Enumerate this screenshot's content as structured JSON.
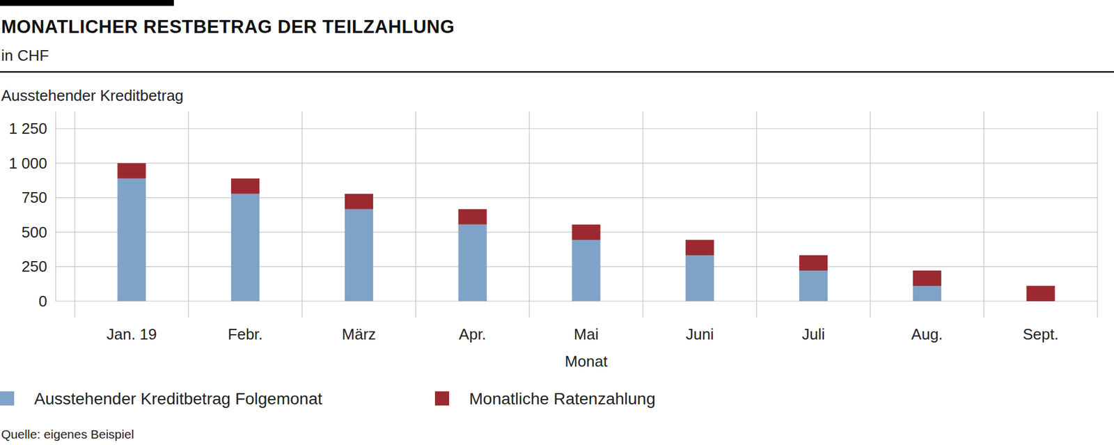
{
  "chart_data": {
    "type": "bar",
    "title": "MONATLICHER RESTBETRAG DER TEILZAHLUNG",
    "subtitle": "in CHF",
    "y_label": "Ausstehender Kreditbetrag",
    "x_label": "Monat",
    "source": "Quelle: eigenes Beispiel",
    "categories": [
      "Jan. 19",
      "Febr.",
      "März",
      "Apr.",
      "Mai",
      "Juni",
      "Juli",
      "Aug.",
      "Sept."
    ],
    "series": [
      {
        "name": "Ausstehender Kreditbetrag Folgemonat",
        "color": "#7fa3c6",
        "values": [
          889,
          778,
          667,
          556,
          444,
          333,
          222,
          111,
          0
        ]
      },
      {
        "name": "Monatliche Ratenzahlung",
        "color": "#9b2a30",
        "values": [
          111,
          111,
          111,
          111,
          111,
          111,
          111,
          111,
          111
        ]
      }
    ],
    "stacked": true,
    "ylim": [
      0,
      1375
    ],
    "yticks": [
      0,
      250,
      500,
      750,
      {
        "value": 1000,
        "label": "1 000"
      },
      {
        "value": 1250,
        "label": "1 250"
      }
    ],
    "grid": true,
    "legend": "bottom"
  }
}
